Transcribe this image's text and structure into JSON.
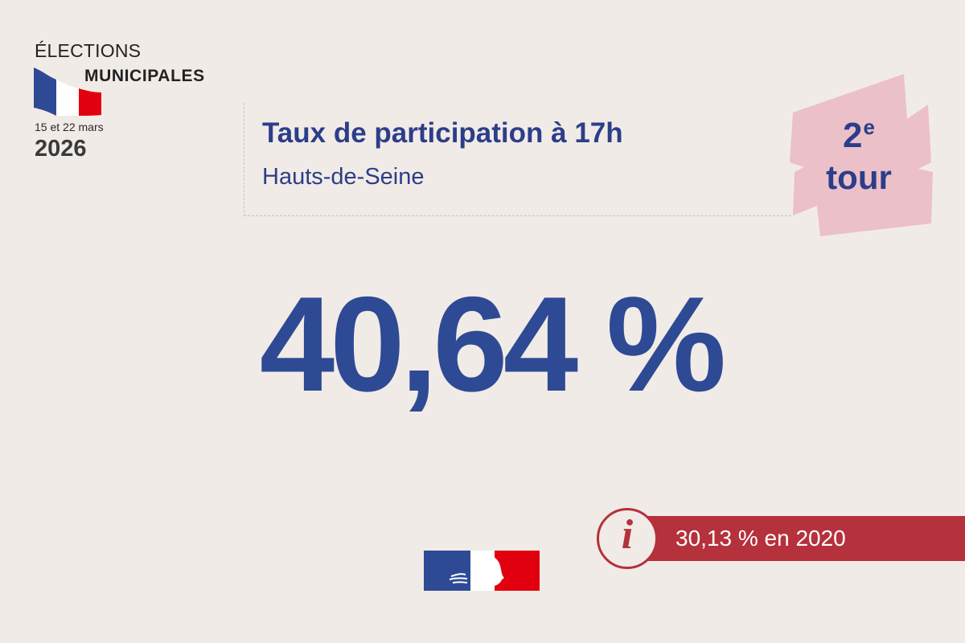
{
  "header": {
    "elections_label": "ÉLECTIONS",
    "municipales_label": "MUNICIPALES",
    "dates": "15 et 22 mars",
    "year": "2026"
  },
  "title": {
    "main": "Taux de participation à 17h",
    "subtitle": "Hauts-de-Seine"
  },
  "round_badge": {
    "number": "2",
    "suffix": "e",
    "word": "tour"
  },
  "participation": {
    "value": "40,64 %"
  },
  "previous": {
    "info_symbol": "i",
    "text": "30,13 % en 2020"
  },
  "colors": {
    "background": "#f1ebe7",
    "primary_blue": "#2c3e89",
    "accent_red": "#b5313c",
    "badge_pink": "#ebc0c8",
    "flag_blue": "#2e4a94",
    "flag_red": "#e1000f"
  },
  "icons": {
    "flag": "french-flag-icon",
    "info": "info-icon",
    "logo": "marianne-logo-icon"
  }
}
